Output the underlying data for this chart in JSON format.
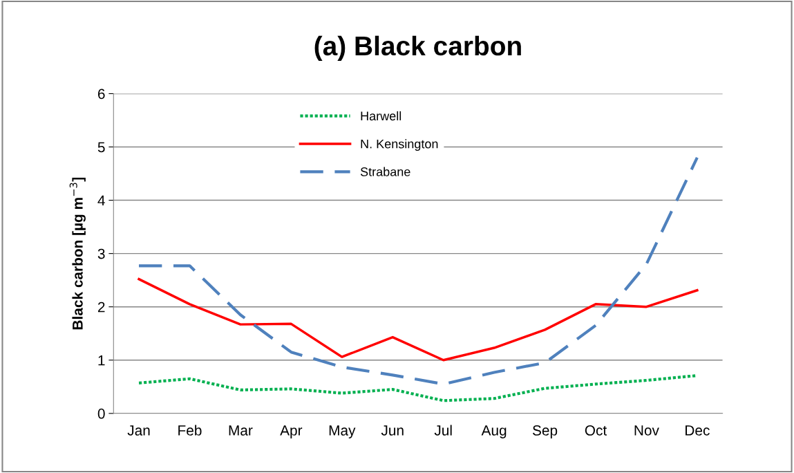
{
  "chart_data": {
    "type": "line",
    "title": "(a) Black carbon",
    "ylabel": "Black carbon [µg m$^{−3}$]",
    "categories": [
      "Jan",
      "Feb",
      "Mar",
      "Apr",
      "May",
      "Jun",
      "Jul",
      "Aug",
      "Sep",
      "Oct",
      "Nov",
      "Dec"
    ],
    "series": [
      {
        "name": "Harwell",
        "color": "#00b050",
        "line_style": "dotted",
        "values": [
          0.57,
          0.65,
          0.44,
          0.46,
          0.38,
          0.45,
          0.24,
          0.28,
          0.47,
          0.55,
          0.62,
          0.71
        ]
      },
      {
        "name": "N. Kensington",
        "color": "#ff0000",
        "line_style": "solid",
        "values": [
          2.52,
          2.05,
          1.67,
          1.68,
          1.06,
          1.43,
          1.0,
          1.23,
          1.57,
          2.05,
          2.0,
          2.31
        ]
      },
      {
        "name": "Strabane",
        "color": "#4f81bd",
        "line_style": "dashed",
        "values": [
          2.77,
          2.77,
          1.85,
          1.15,
          0.87,
          0.72,
          0.55,
          0.77,
          0.95,
          1.65,
          2.8,
          4.8
        ]
      }
    ],
    "ylim": [
      0,
      6
    ],
    "yticks": [
      0,
      1,
      2,
      3,
      4,
      5,
      6
    ],
    "grid": "y",
    "legend": "top",
    "marker": "none"
  }
}
